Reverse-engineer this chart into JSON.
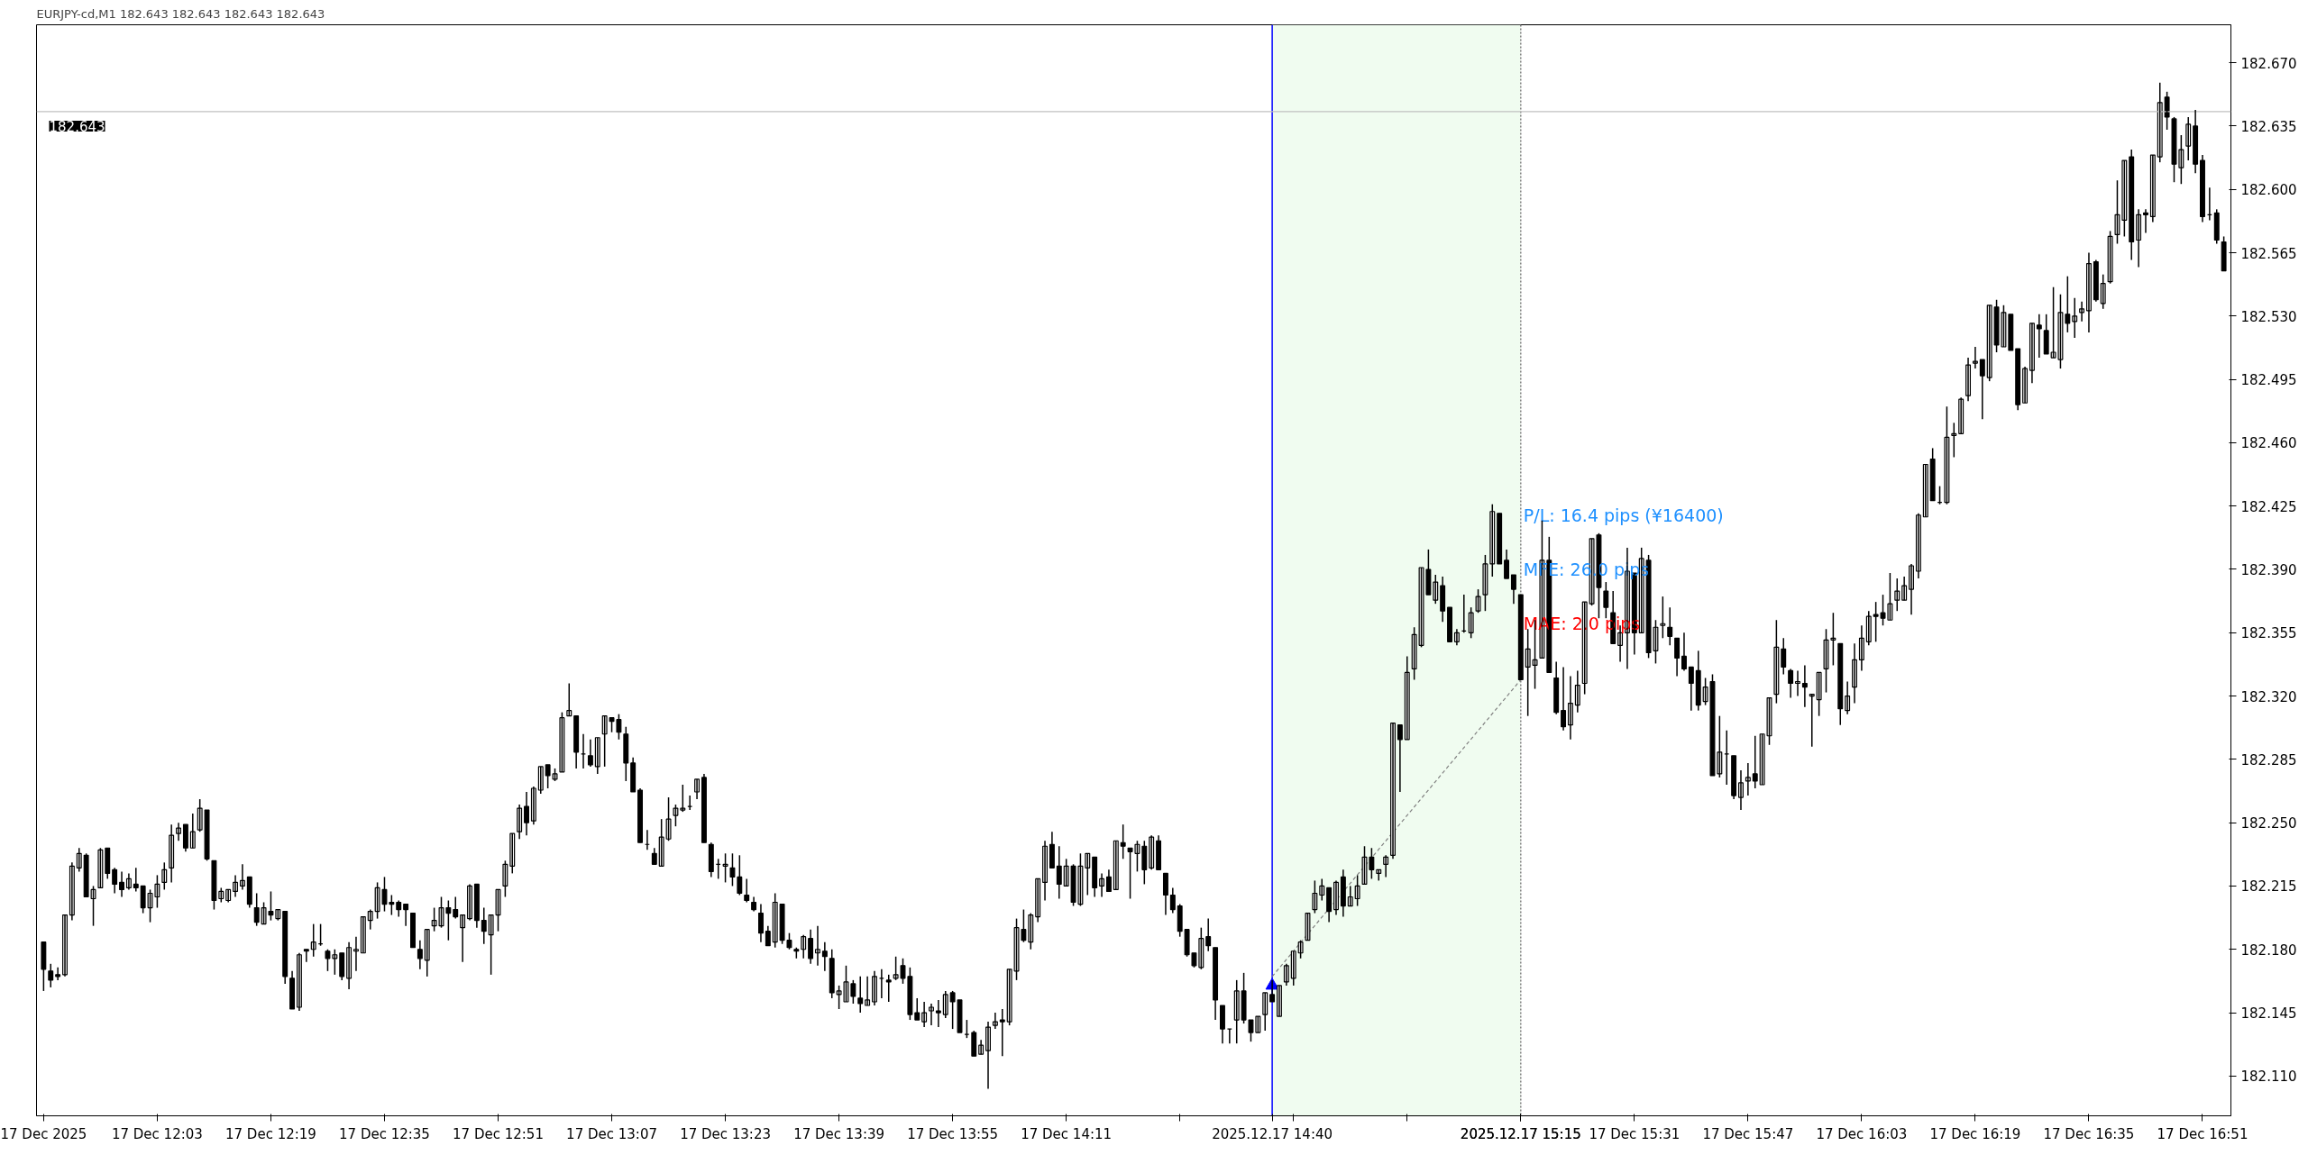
{
  "chart_data": {
    "type": "candlestick",
    "title": "EURJPY-cd,M1  182.643 182.643 182.643 182.643",
    "x": [
      "2025-12-17T11:47",
      "2025-12-17T11:48",
      "2025-12-17T11:49",
      "2025-12-17T11:50",
      "2025-12-17T11:51",
      "2025-12-17T11:52",
      "2025-12-17T11:53",
      "2025-12-17T11:54",
      "2025-12-17T11:55",
      "2025-12-17T11:56",
      "2025-12-17T11:57",
      "2025-12-17T11:58",
      "2025-12-17T11:59",
      "2025-12-17T12:00",
      "2025-12-17T12:01",
      "2025-12-17T12:02",
      "2025-12-17T12:03",
      "2025-12-17T12:04",
      "2025-12-17T12:05",
      "2025-12-17T12:06",
      "2025-12-17T12:07",
      "2025-12-17T12:08",
      "2025-12-17T12:09",
      "2025-12-17T12:10",
      "2025-12-17T12:11",
      "2025-12-17T12:12",
      "2025-12-17T12:13",
      "2025-12-17T12:14",
      "2025-12-17T12:15",
      "2025-12-17T12:16",
      "2025-12-17T12:17",
      "2025-12-17T12:18",
      "2025-12-17T12:19",
      "2025-12-17T12:20",
      "2025-12-17T12:21",
      "2025-12-17T12:22",
      "2025-12-17T12:23",
      "2025-12-17T12:24",
      "2025-12-17T12:25",
      "2025-12-17T12:26",
      "2025-12-17T12:27",
      "2025-12-17T12:28",
      "2025-12-17T12:29",
      "2025-12-17T12:30",
      "2025-12-17T12:31",
      "2025-12-17T12:32",
      "2025-12-17T12:33",
      "2025-12-17T12:34",
      "2025-12-17T12:35",
      "2025-12-17T12:36",
      "2025-12-17T12:37",
      "2025-12-17T12:38",
      "2025-12-17T12:39",
      "2025-12-17T12:40",
      "2025-12-17T12:41",
      "2025-12-17T12:42",
      "2025-12-17T12:43",
      "2025-12-17T12:44",
      "2025-12-17T12:45",
      "2025-12-17T12:46",
      "2025-12-17T12:47",
      "2025-12-17T12:48",
      "2025-12-17T12:49",
      "2025-12-17T12:50",
      "2025-12-17T12:51",
      "2025-12-17T12:52",
      "2025-12-17T12:53",
      "2025-12-17T12:54",
      "2025-12-17T12:55",
      "2025-12-17T12:56",
      "2025-12-17T12:57",
      "2025-12-17T12:58",
      "2025-12-17T12:59",
      "2025-12-17T13:00",
      "2025-12-17T13:01",
      "2025-12-17T13:02",
      "2025-12-17T13:03",
      "2025-12-17T13:04",
      "2025-12-17T13:05",
      "2025-12-17T13:06",
      "2025-12-17T13:07",
      "2025-12-17T13:08",
      "2025-12-17T13:09",
      "2025-12-17T13:10",
      "2025-12-17T13:11",
      "2025-12-17T13:12",
      "2025-12-17T13:13",
      "2025-12-17T13:14",
      "2025-12-17T13:15",
      "2025-12-17T13:16",
      "2025-12-17T13:17",
      "2025-12-17T13:18",
      "2025-12-17T13:19",
      "2025-12-17T13:20",
      "2025-12-17T13:21",
      "2025-12-17T13:22",
      "2025-12-17T13:23",
      "2025-12-17T13:24",
      "2025-12-17T13:25",
      "2025-12-17T13:26",
      "2025-12-17T13:27",
      "2025-12-17T13:28",
      "2025-12-17T13:29",
      "2025-12-17T13:30",
      "2025-12-17T13:31",
      "2025-12-17T13:32",
      "2025-12-17T13:33",
      "2025-12-17T13:34",
      "2025-12-17T13:35",
      "2025-12-17T13:36",
      "2025-12-17T13:37",
      "2025-12-17T13:38",
      "2025-12-17T13:39",
      "2025-12-17T13:40",
      "2025-12-17T13:41",
      "2025-12-17T13:42",
      "2025-12-17T13:43",
      "2025-12-17T13:44",
      "2025-12-17T13:45",
      "2025-12-17T13:46",
      "2025-12-17T13:47",
      "2025-12-17T13:48",
      "2025-12-17T13:49",
      "2025-12-17T13:50",
      "2025-12-17T13:51",
      "2025-12-17T13:52",
      "2025-12-17T13:53",
      "2025-12-17T13:54",
      "2025-12-17T13:55",
      "2025-12-17T13:56",
      "2025-12-17T13:57",
      "2025-12-17T13:58",
      "2025-12-17T13:59",
      "2025-12-17T14:00",
      "2025-12-17T14:01",
      "2025-12-17T14:02",
      "2025-12-17T14:03",
      "2025-12-17T14:04",
      "2025-12-17T14:05",
      "2025-12-17T14:06",
      "2025-12-17T14:07",
      "2025-12-17T14:08",
      "2025-12-17T14:09",
      "2025-12-17T14:10",
      "2025-12-17T14:11",
      "2025-12-17T14:12",
      "2025-12-17T14:13",
      "2025-12-17T14:14",
      "2025-12-17T14:15",
      "2025-12-17T14:16",
      "2025-12-17T14:17",
      "2025-12-17T14:18",
      "2025-12-17T14:19",
      "2025-12-17T14:20",
      "2025-12-17T14:21",
      "2025-12-17T14:22",
      "2025-12-17T14:23",
      "2025-12-17T14:24",
      "2025-12-17T14:25",
      "2025-12-17T14:26",
      "2025-12-17T14:27",
      "2025-12-17T14:28",
      "2025-12-17T14:29",
      "2025-12-17T14:30",
      "2025-12-17T14:31",
      "2025-12-17T14:32",
      "2025-12-17T14:33",
      "2025-12-17T14:34",
      "2025-12-17T14:35",
      "2025-12-17T14:36",
      "2025-12-17T14:37",
      "2025-12-17T14:38",
      "2025-12-17T14:39",
      "2025-12-17T14:40",
      "2025-12-17T14:41",
      "2025-12-17T14:42",
      "2025-12-17T14:43",
      "2025-12-17T14:44",
      "2025-12-17T14:45",
      "2025-12-17T14:46",
      "2025-12-17T14:47",
      "2025-12-17T14:48",
      "2025-12-17T14:49",
      "2025-12-17T14:50",
      "2025-12-17T14:51",
      "2025-12-17T14:52",
      "2025-12-17T14:53",
      "2025-12-17T14:54",
      "2025-12-17T14:55",
      "2025-12-17T14:56",
      "2025-12-17T14:57",
      "2025-12-17T14:58",
      "2025-12-17T14:59",
      "2025-12-17T15:00",
      "2025-12-17T15:01",
      "2025-12-17T15:02",
      "2025-12-17T15:03",
      "2025-12-17T15:04",
      "2025-12-17T15:05",
      "2025-12-17T15:06",
      "2025-12-17T15:07",
      "2025-12-17T15:08",
      "2025-12-17T15:09",
      "2025-12-17T15:10",
      "2025-12-17T15:11",
      "2025-12-17T15:12",
      "2025-12-17T15:13",
      "2025-12-17T15:14",
      "2025-12-17T15:15",
      "2025-12-17T15:16",
      "2025-12-17T15:17",
      "2025-12-17T15:18",
      "2025-12-17T15:19",
      "2025-12-17T15:20",
      "2025-12-17T15:21",
      "2025-12-17T15:22",
      "2025-12-17T15:23",
      "2025-12-17T15:24",
      "2025-12-17T15:25",
      "2025-12-17T15:26",
      "2025-12-17T15:27",
      "2025-12-17T15:28",
      "2025-12-17T15:29",
      "2025-12-17T15:30",
      "2025-12-17T15:31",
      "2025-12-17T15:32",
      "2025-12-17T15:33",
      "2025-12-17T15:34",
      "2025-12-17T15:35",
      "2025-12-17T15:36",
      "2025-12-17T15:37",
      "2025-12-17T15:38",
      "2025-12-17T15:39",
      "2025-12-17T15:40",
      "2025-12-17T15:41",
      "2025-12-17T15:42",
      "2025-12-17T15:43",
      "2025-12-17T15:44",
      "2025-12-17T15:45",
      "2025-12-17T15:46",
      "2025-12-17T15:47",
      "2025-12-17T15:48",
      "2025-12-17T15:49",
      "2025-12-17T15:50",
      "2025-12-17T15:51",
      "2025-12-17T15:52",
      "2025-12-17T15:53",
      "2025-12-17T15:54",
      "2025-12-17T15:55",
      "2025-12-17T15:56",
      "2025-12-17T15:57",
      "2025-12-17T15:58",
      "2025-12-17T15:59",
      "2025-12-17T16:00",
      "2025-12-17T16:01",
      "2025-12-17T16:02",
      "2025-12-17T16:03",
      "2025-12-17T16:04",
      "2025-12-17T16:05",
      "2025-12-17T16:06",
      "2025-12-17T16:07",
      "2025-12-17T16:08",
      "2025-12-17T16:09",
      "2025-12-17T16:10",
      "2025-12-17T16:11",
      "2025-12-17T16:12",
      "2025-12-17T16:13",
      "2025-12-17T16:14",
      "2025-12-17T16:15",
      "2025-12-17T16:16",
      "2025-12-17T16:17",
      "2025-12-17T16:18",
      "2025-12-17T16:19",
      "2025-12-17T16:20",
      "2025-12-17T16:21",
      "2025-12-17T16:22",
      "2025-12-17T16:23",
      "2025-12-17T16:24",
      "2025-12-17T16:25",
      "2025-12-17T16:26",
      "2025-12-17T16:27",
      "2025-12-17T16:28",
      "2025-12-17T16:29",
      "2025-12-17T16:30",
      "2025-12-17T16:31",
      "2025-12-17T16:32",
      "2025-12-17T16:33",
      "2025-12-17T16:34",
      "2025-12-17T16:35",
      "2025-12-17T16:36",
      "2025-12-17T16:37",
      "2025-12-17T16:38",
      "2025-12-17T16:39",
      "2025-12-17T16:40",
      "2025-12-17T16:41",
      "2025-12-17T16:42",
      "2025-12-17T16:43",
      "2025-12-17T16:44",
      "2025-12-17T16:45",
      "2025-12-17T16:46",
      "2025-12-17T16:47",
      "2025-12-17T16:48",
      "2025-12-17T16:49",
      "2025-12-17T16:50",
      "2025-12-17T16:51",
      "2025-12-17T16:52",
      "2025-12-17T16:53",
      "2025-12-17T16:54"
    ],
    "ohlc": [
      [
        182.184,
        182.184,
        182.157,
        182.169
      ],
      [
        182.168,
        182.172,
        182.159,
        182.163
      ],
      [
        182.166,
        182.17,
        182.163,
        182.165
      ],
      [
        182.166,
        182.199,
        182.165,
        182.199
      ],
      [
        182.199,
        182.228,
        182.196,
        182.226
      ],
      [
        182.225,
        182.236,
        182.223,
        182.233
      ],
      [
        182.232,
        182.233,
        182.209,
        182.209
      ],
      [
        182.208,
        182.215,
        182.193,
        182.213
      ],
      [
        182.214,
        182.236,
        182.214,
        182.235
      ],
      [
        182.236,
        182.236,
        182.219,
        182.222
      ],
      [
        182.224,
        182.225,
        182.211,
        182.216
      ],
      [
        182.217,
        182.223,
        182.209,
        182.213
      ],
      [
        182.214,
        182.222,
        182.213,
        182.219
      ],
      [
        182.216,
        182.225,
        182.212,
        182.214
      ],
      [
        182.215,
        182.215,
        182.2,
        182.203
      ],
      [
        182.203,
        182.213,
        182.195,
        182.211
      ],
      [
        182.209,
        182.221,
        182.203,
        182.216
      ],
      [
        182.217,
        182.228,
        182.213,
        182.224
      ],
      [
        182.225,
        182.249,
        182.217,
        182.243
      ],
      [
        182.244,
        182.25,
        182.24,
        182.247
      ],
      [
        182.249,
        182.249,
        182.234,
        182.236
      ],
      [
        182.236,
        182.255,
        182.236,
        182.245
      ],
      [
        182.246,
        182.263,
        182.245,
        182.258
      ],
      [
        182.257,
        182.257,
        182.229,
        182.23
      ],
      [
        182.229,
        182.229,
        182.202,
        182.207
      ],
      [
        182.208,
        182.214,
        182.206,
        182.212
      ],
      [
        182.207,
        182.213,
        182.206,
        182.213
      ],
      [
        182.212,
        182.221,
        182.209,
        182.217
      ],
      [
        182.215,
        182.227,
        182.213,
        182.218
      ],
      [
        182.22,
        182.22,
        182.203,
        182.205
      ],
      [
        182.203,
        182.211,
        182.193,
        182.195
      ],
      [
        182.194,
        182.206,
        182.194,
        182.203
      ],
      [
        182.201,
        182.212,
        182.196,
        182.199
      ],
      [
        182.197,
        182.202,
        182.196,
        182.202
      ],
      [
        182.201,
        182.201,
        182.161,
        182.165
      ],
      [
        182.164,
        182.168,
        182.147,
        182.147
      ],
      [
        182.148,
        182.178,
        182.146,
        182.177
      ],
      [
        182.18,
        182.18,
        182.173,
        182.179
      ],
      [
        182.18,
        182.194,
        182.176,
        182.184
      ],
      [
        182.183,
        182.194,
        182.182,
        182.183
      ],
      [
        182.179,
        182.18,
        182.168,
        182.175
      ],
      [
        182.175,
        182.18,
        182.166,
        182.177
      ],
      [
        182.178,
        182.178,
        182.163,
        182.165
      ],
      [
        182.164,
        182.184,
        182.158,
        182.181
      ],
      [
        182.179,
        182.187,
        182.168,
        182.18
      ],
      [
        182.178,
        182.198,
        182.178,
        182.198
      ],
      [
        182.196,
        182.202,
        182.191,
        182.201
      ],
      [
        182.201,
        182.217,
        182.197,
        182.214
      ],
      [
        182.213,
        182.22,
        182.201,
        182.205
      ],
      [
        182.206,
        182.21,
        182.199,
        182.205
      ],
      [
        182.206,
        182.207,
        182.198,
        182.202
      ],
      [
        182.205,
        182.205,
        182.193,
        182.202
      ],
      [
        182.2,
        182.2,
        182.181,
        182.181
      ],
      [
        182.18,
        182.185,
        182.169,
        182.175
      ],
      [
        182.174,
        182.191,
        182.165,
        182.191
      ],
      [
        182.193,
        182.203,
        182.19,
        182.196
      ],
      [
        182.193,
        182.209,
        182.192,
        182.203
      ],
      [
        182.203,
        182.207,
        182.185,
        182.2
      ],
      [
        182.202,
        182.209,
        182.197,
        182.198
      ],
      [
        182.192,
        182.199,
        182.173,
        182.199
      ],
      [
        182.197,
        182.216,
        182.196,
        182.215
      ],
      [
        182.216,
        182.216,
        182.192,
        182.196
      ],
      [
        182.196,
        182.203,
        182.183,
        182.19
      ],
      [
        182.188,
        182.199,
        182.166,
        182.199
      ],
      [
        182.199,
        182.213,
        182.19,
        182.213
      ],
      [
        182.215,
        182.229,
        182.209,
        182.227
      ],
      [
        182.226,
        182.244,
        182.222,
        182.244
      ],
      [
        182.245,
        182.26,
        182.241,
        182.258
      ],
      [
        182.259,
        182.267,
        182.243,
        182.25
      ],
      [
        182.251,
        182.27,
        182.249,
        182.269
      ],
      [
        182.268,
        182.281,
        182.266,
        182.281
      ],
      [
        182.282,
        182.282,
        182.269,
        182.276
      ],
      [
        182.274,
        182.28,
        182.273,
        182.277
      ],
      [
        182.278,
        182.311,
        182.278,
        182.308
      ],
      [
        182.309,
        182.327,
        182.309,
        182.312
      ],
      [
        182.309,
        182.309,
        182.28,
        182.289
      ],
      [
        182.288,
        182.299,
        182.28,
        182.288
      ],
      [
        182.287,
        182.296,
        182.281,
        182.282
      ],
      [
        182.281,
        182.297,
        182.277,
        182.297
      ],
      [
        182.299,
        182.309,
        182.281,
        182.309
      ],
      [
        182.308,
        182.308,
        182.3,
        182.306
      ],
      [
        182.307,
        182.31,
        182.296,
        182.3
      ],
      [
        182.299,
        182.303,
        182.273,
        182.283
      ],
      [
        182.283,
        182.286,
        182.267,
        182.267
      ],
      [
        182.268,
        182.269,
        182.239,
        182.239
      ],
      [
        182.238,
        182.246,
        182.235,
        182.238
      ],
      [
        182.233,
        182.236,
        182.227,
        182.227
      ],
      [
        182.226,
        182.252,
        182.226,
        182.242
      ],
      [
        182.241,
        182.264,
        182.24,
        182.252
      ],
      [
        182.254,
        182.26,
        182.248,
        182.258
      ],
      [
        182.257,
        182.271,
        182.256,
        182.258
      ],
      [
        182.259,
        182.265,
        182.257,
        182.259
      ],
      [
        182.267,
        182.274,
        182.263,
        182.274
      ],
      [
        182.275,
        182.277,
        182.239,
        182.239
      ],
      [
        182.238,
        182.239,
        182.22,
        182.223
      ],
      [
        182.227,
        182.23,
        182.219,
        182.227
      ],
      [
        182.226,
        182.233,
        182.217,
        182.227
      ],
      [
        182.225,
        182.233,
        182.215,
        182.22
      ],
      [
        182.22,
        182.232,
        182.21,
        182.211
      ],
      [
        182.21,
        182.219,
        182.206,
        182.207
      ],
      [
        182.206,
        182.209,
        182.201,
        182.202
      ],
      [
        182.2,
        182.205,
        182.184,
        182.189
      ],
      [
        182.19,
        182.193,
        182.182,
        182.182
      ],
      [
        182.184,
        182.211,
        182.181,
        182.206
      ],
      [
        182.205,
        182.205,
        182.183,
        182.185
      ],
      [
        182.185,
        182.189,
        182.18,
        182.181
      ],
      [
        182.18,
        182.181,
        182.175,
        182.179
      ],
      [
        182.18,
        182.188,
        182.175,
        182.187
      ],
      [
        182.186,
        182.191,
        182.172,
        182.175
      ],
      [
        182.178,
        182.193,
        182.171,
        182.18
      ],
      [
        182.179,
        182.184,
        182.168,
        182.176
      ],
      [
        182.175,
        182.18,
        182.153,
        182.156
      ],
      [
        182.155,
        182.16,
        182.147,
        182.157
      ],
      [
        182.151,
        182.171,
        182.151,
        182.162
      ],
      [
        182.161,
        182.163,
        182.15,
        182.154
      ],
      [
        182.153,
        182.165,
        182.145,
        182.15
      ],
      [
        182.149,
        182.165,
        182.149,
        182.152
      ],
      [
        182.151,
        182.168,
        182.149,
        182.165
      ],
      [
        182.164,
        182.169,
        182.153,
        182.164
      ],
      [
        182.163,
        182.166,
        182.151,
        182.162
      ],
      [
        182.164,
        182.176,
        182.163,
        182.166
      ],
      [
        182.171,
        182.175,
        182.161,
        182.164
      ],
      [
        182.165,
        182.17,
        182.141,
        182.144
      ],
      [
        182.145,
        182.153,
        182.141,
        182.141
      ],
      [
        182.14,
        182.151,
        182.137,
        182.145
      ],
      [
        182.146,
        182.15,
        182.138,
        182.148
      ],
      [
        182.146,
        182.152,
        182.137,
        182.145
      ],
      [
        182.144,
        182.157,
        182.142,
        182.155
      ],
      [
        182.156,
        182.157,
        182.136,
        182.151
      ],
      [
        182.152,
        182.152,
        182.134,
        182.134
      ],
      [
        182.133,
        182.141,
        182.131,
        182.133
      ],
      [
        182.134,
        182.135,
        182.121,
        182.121
      ],
      [
        182.122,
        182.13,
        182.122,
        182.127
      ],
      [
        182.124,
        182.14,
        182.103,
        182.137
      ],
      [
        182.138,
        182.145,
        182.136,
        182.14
      ],
      [
        182.141,
        182.147,
        182.121,
        182.14
      ],
      [
        182.14,
        182.169,
        182.138,
        182.169
      ],
      [
        182.168,
        182.197,
        182.163,
        182.192
      ],
      [
        182.191,
        182.202,
        182.184,
        182.185
      ],
      [
        182.184,
        182.2,
        182.18,
        182.199
      ],
      [
        182.198,
        182.219,
        182.195,
        182.219
      ],
      [
        182.217,
        182.24,
        182.207,
        182.237
      ],
      [
        182.238,
        182.245,
        182.225,
        182.225
      ],
      [
        182.226,
        182.237,
        182.208,
        182.216
      ],
      [
        182.215,
        182.23,
        182.215,
        182.226
      ],
      [
        182.226,
        182.227,
        182.204,
        182.206
      ],
      [
        182.205,
        182.233,
        182.204,
        182.226
      ],
      [
        182.225,
        182.233,
        182.21,
        182.233
      ],
      [
        182.231,
        182.231,
        182.209,
        182.214
      ],
      [
        182.215,
        182.222,
        182.209,
        182.219
      ],
      [
        182.22,
        182.224,
        182.212,
        182.212
      ],
      [
        182.213,
        182.24,
        182.213,
        182.24
      ],
      [
        182.239,
        182.249,
        182.23,
        182.237
      ],
      [
        182.236,
        182.236,
        182.208,
        182.234
      ],
      [
        182.233,
        182.24,
        182.223,
        182.238
      ],
      [
        182.237,
        182.24,
        182.216,
        182.224
      ],
      [
        182.225,
        182.243,
        182.224,
        182.242
      ],
      [
        182.24,
        182.243,
        182.224,
        182.224
      ],
      [
        182.222,
        182.222,
        182.199,
        182.21
      ],
      [
        182.21,
        182.214,
        182.2,
        182.202
      ],
      [
        182.204,
        182.205,
        182.187,
        182.19
      ],
      [
        182.191,
        182.191,
        182.176,
        182.177
      ],
      [
        182.178,
        182.178,
        182.17,
        182.171
      ],
      [
        182.17,
        182.192,
        182.169,
        182.186
      ],
      [
        182.187,
        182.197,
        182.179,
        182.182
      ],
      [
        182.181,
        182.181,
        182.141,
        182.152
      ],
      [
        182.149,
        182.149,
        182.128,
        182.136
      ],
      [
        182.136,
        182.136,
        182.128,
        182.136
      ],
      [
        182.141,
        182.163,
        182.128,
        182.157
      ],
      [
        182.157,
        182.167,
        182.139,
        182.141
      ],
      [
        182.141,
        182.141,
        182.129,
        182.134
      ],
      [
        182.134,
        182.143,
        182.134,
        182.143
      ],
      [
        182.144,
        182.156,
        182.135,
        182.156
      ],
      [
        182.155,
        182.163,
        182.151,
        182.151
      ],
      [
        182.143,
        182.16,
        182.143,
        182.16
      ],
      [
        182.162,
        182.172,
        182.16,
        182.171
      ],
      [
        182.164,
        182.179,
        182.16,
        182.179
      ],
      [
        182.178,
        182.185,
        182.175,
        182.184
      ],
      [
        182.185,
        182.2,
        182.185,
        182.2
      ],
      [
        182.202,
        182.218,
        182.2,
        182.211
      ],
      [
        182.21,
        182.219,
        182.207,
        182.215
      ],
      [
        182.214,
        182.214,
        182.195,
        182.201
      ],
      [
        182.202,
        182.218,
        182.199,
        182.217
      ],
      [
        182.22,
        182.224,
        182.198,
        182.204
      ],
      [
        182.204,
        182.215,
        182.204,
        182.209
      ],
      [
        182.208,
        182.221,
        182.204,
        182.215
      ],
      [
        182.216,
        182.237,
        182.216,
        182.231
      ],
      [
        182.231,
        182.236,
        182.219,
        182.224
      ],
      [
        182.222,
        182.224,
        182.218,
        182.224
      ],
      [
        182.227,
        182.232,
        182.22,
        182.231
      ],
      [
        182.232,
        182.305,
        182.23,
        182.305
      ],
      [
        182.304,
        182.304,
        182.267,
        182.296
      ],
      [
        182.296,
        182.342,
        182.296,
        182.333
      ],
      [
        182.335,
        182.358,
        182.329,
        182.354
      ],
      [
        182.348,
        182.391,
        182.347,
        182.391
      ],
      [
        182.39,
        182.401,
        182.376,
        182.376
      ],
      [
        182.373,
        182.387,
        182.371,
        182.383
      ],
      [
        182.381,
        182.386,
        182.361,
        182.367
      ],
      [
        182.369,
        182.369,
        182.35,
        182.35
      ],
      [
        182.35,
        182.357,
        182.348,
        182.355
      ],
      [
        182.356,
        182.376,
        182.355,
        182.356
      ],
      [
        182.355,
        182.369,
        182.352,
        182.366
      ],
      [
        182.367,
        182.379,
        182.366,
        182.375
      ],
      [
        182.376,
        182.398,
        182.367,
        182.393
      ],
      [
        182.393,
        182.426,
        182.386,
        182.422
      ],
      [
        182.421,
        182.421,
        182.393,
        182.393
      ],
      [
        182.395,
        182.401,
        182.385,
        182.385
      ],
      [
        182.387,
        182.387,
        182.371,
        182.379
      ],
      [
        182.376,
        182.376,
        182.329,
        182.329
      ],
      [
        182.336,
        182.357,
        182.309,
        182.346
      ],
      [
        182.337,
        182.362,
        182.324,
        182.34
      ],
      [
        182.341,
        182.417,
        182.341,
        182.395
      ],
      [
        182.395,
        182.408,
        182.333,
        182.333
      ],
      [
        182.33,
        182.339,
        182.31,
        182.311
      ],
      [
        182.312,
        182.336,
        182.301,
        182.303
      ],
      [
        182.304,
        182.331,
        182.296,
        182.316
      ],
      [
        182.315,
        182.334,
        182.311,
        182.326
      ],
      [
        182.327,
        182.372,
        182.321,
        182.372
      ],
      [
        182.371,
        182.407,
        182.37,
        182.407
      ],
      [
        182.409,
        182.41,
        182.363,
        182.38
      ],
      [
        182.378,
        182.383,
        182.363,
        182.369
      ],
      [
        182.366,
        182.378,
        182.349,
        182.349
      ],
      [
        182.348,
        182.359,
        182.339,
        182.355
      ],
      [
        182.355,
        182.402,
        182.335,
        182.389
      ],
      [
        182.388,
        182.388,
        182.343,
        182.355
      ],
      [
        182.355,
        182.402,
        182.355,
        182.396
      ],
      [
        182.395,
        182.398,
        182.341,
        182.344
      ],
      [
        182.345,
        182.362,
        182.338,
        182.358
      ],
      [
        182.359,
        182.375,
        182.352,
        182.36
      ],
      [
        182.358,
        182.369,
        182.348,
        182.353
      ],
      [
        182.352,
        182.352,
        182.331,
        182.341
      ],
      [
        182.342,
        182.355,
        182.334,
        182.335
      ],
      [
        182.336,
        182.336,
        182.312,
        182.327
      ],
      [
        182.334,
        182.345,
        182.312,
        182.315
      ],
      [
        182.317,
        182.33,
        182.315,
        182.325
      ],
      [
        182.328,
        182.332,
        182.276,
        182.276
      ],
      [
        182.277,
        182.309,
        182.275,
        182.289
      ],
      [
        182.288,
        182.301,
        182.271,
        182.288
      ],
      [
        182.287,
        182.287,
        182.263,
        182.265
      ],
      [
        182.264,
        182.279,
        182.257,
        182.272
      ],
      [
        182.273,
        182.283,
        182.265,
        182.275
      ],
      [
        182.277,
        182.298,
        182.269,
        182.273
      ],
      [
        182.271,
        182.299,
        182.271,
        182.299
      ],
      [
        182.298,
        182.319,
        182.293,
        182.319
      ],
      [
        182.321,
        182.362,
        182.316,
        182.347
      ],
      [
        182.346,
        182.352,
        182.332,
        182.336
      ],
      [
        182.334,
        182.335,
        182.319,
        182.327
      ],
      [
        182.327,
        182.334,
        182.32,
        182.328
      ],
      [
        182.327,
        182.337,
        182.314,
        182.325
      ],
      [
        182.32,
        182.321,
        182.292,
        182.321
      ],
      [
        182.318,
        182.333,
        182.309,
        182.333
      ],
      [
        182.335,
        182.357,
        182.322,
        182.351
      ],
      [
        182.351,
        182.366,
        182.337,
        182.352
      ],
      [
        182.349,
        182.349,
        182.304,
        182.313
      ],
      [
        182.312,
        182.328,
        182.31,
        182.32
      ],
      [
        182.325,
        182.349,
        182.316,
        182.34
      ],
      [
        182.34,
        182.359,
        182.334,
        182.352
      ],
      [
        182.35,
        182.367,
        182.348,
        182.364
      ],
      [
        182.365,
        182.372,
        182.35,
        182.364
      ],
      [
        182.366,
        182.376,
        182.359,
        182.363
      ],
      [
        182.362,
        182.388,
        182.362,
        182.371
      ],
      [
        182.373,
        182.385,
        182.367,
        182.378
      ],
      [
        182.373,
        182.386,
        182.373,
        182.381
      ],
      [
        182.379,
        182.393,
        182.365,
        182.392
      ],
      [
        182.389,
        182.421,
        182.385,
        182.42
      ],
      [
        182.419,
        182.448,
        182.419,
        182.448
      ],
      [
        182.451,
        182.457,
        182.428,
        182.428
      ],
      [
        182.427,
        182.436,
        182.426,
        182.427
      ],
      [
        182.427,
        182.48,
        182.426,
        182.463
      ],
      [
        182.464,
        182.471,
        182.452,
        182.465
      ],
      [
        182.465,
        182.485,
        182.465,
        182.484
      ],
      [
        182.486,
        182.507,
        182.483,
        182.503
      ],
      [
        182.504,
        182.513,
        182.501,
        182.505
      ],
      [
        182.506,
        182.506,
        182.473,
        182.497
      ],
      [
        182.496,
        182.536,
        182.494,
        182.536
      ],
      [
        182.535,
        182.539,
        182.51,
        182.514
      ],
      [
        182.513,
        182.536,
        182.513,
        182.532
      ],
      [
        182.531,
        182.531,
        182.511,
        182.511
      ],
      [
        182.512,
        182.512,
        182.478,
        182.481
      ],
      [
        182.482,
        182.502,
        182.482,
        182.501
      ],
      [
        182.5,
        182.526,
        182.493,
        182.526
      ],
      [
        182.525,
        182.531,
        182.507,
        182.523
      ],
      [
        182.522,
        182.531,
        182.509,
        182.509
      ],
      [
        182.507,
        182.546,
        182.507,
        182.51
      ],
      [
        182.506,
        182.542,
        182.501,
        182.532
      ],
      [
        182.531,
        182.552,
        182.521,
        182.526
      ],
      [
        182.527,
        182.54,
        182.518,
        182.53
      ],
      [
        182.532,
        182.538,
        182.527,
        182.534
      ],
      [
        182.533,
        182.565,
        182.521,
        182.559
      ],
      [
        182.56,
        182.561,
        182.538,
        182.539
      ],
      [
        182.537,
        182.553,
        182.534,
        182.548
      ],
      [
        182.549,
        182.577,
        182.548,
        182.574
      ],
      [
        182.575,
        182.605,
        182.57,
        182.586
      ],
      [
        182.583,
        182.616,
        182.574,
        182.616
      ],
      [
        182.618,
        182.622,
        182.561,
        182.571
      ],
      [
        182.572,
        182.589,
        182.557,
        182.586
      ],
      [
        182.587,
        182.589,
        182.576,
        182.586
      ],
      [
        182.585,
        182.619,
        182.582,
        182.619
      ],
      [
        182.618,
        182.659,
        182.615,
        182.648
      ],
      [
        182.651,
        182.654,
        182.633,
        182.64
      ],
      [
        182.639,
        182.64,
        182.604,
        182.614
      ],
      [
        182.612,
        182.63,
        182.603,
        182.622
      ],
      [
        182.624,
        182.64,
        182.616,
        182.636
      ],
      [
        182.635,
        182.644,
        182.609,
        182.614
      ],
      [
        182.616,
        182.619,
        182.582,
        182.585
      ],
      [
        182.586,
        182.601,
        182.583,
        182.586
      ],
      [
        182.587,
        182.589,
        182.57,
        182.572
      ],
      [
        182.571,
        182.574,
        182.555,
        182.555
      ]
    ],
    "xlim": [
      "2025-12-17T11:46",
      "2025-12-17T16:55"
    ],
    "xticks": [
      {
        "value": "2025-12-17T11:47",
        "label": "17 Dec 2025"
      },
      {
        "value": "2025-12-17T12:03",
        "label": "17 Dec 12:03"
      },
      {
        "value": "2025-12-17T12:19",
        "label": "17 Dec 12:19"
      },
      {
        "value": "2025-12-17T12:35",
        "label": "17 Dec 12:35"
      },
      {
        "value": "2025-12-17T12:51",
        "label": "17 Dec 12:51"
      },
      {
        "value": "2025-12-17T13:07",
        "label": "17 Dec 13:07"
      },
      {
        "value": "2025-12-17T13:23",
        "label": "17 Dec 13:23"
      },
      {
        "value": "2025-12-17T13:39",
        "label": "17 Dec 13:39"
      },
      {
        "value": "2025-12-17T13:55",
        "label": "17 Dec 13:55"
      },
      {
        "value": "2025-12-17T14:11",
        "label": "17 Dec 14:11"
      },
      {
        "value": "2025-12-17T14:27",
        "label": null
      },
      {
        "value": "2025-12-17T14:43",
        "label": null
      },
      {
        "value": "2025-12-17T14:59",
        "label": null
      },
      {
        "value": "2025-12-17T15:15",
        "label": null
      },
      {
        "value": "2025-12-17T15:31",
        "label": "17 Dec 15:31"
      },
      {
        "value": "2025-12-17T15:47",
        "label": "17 Dec 15:47"
      },
      {
        "value": "2025-12-17T16:03",
        "label": "17 Dec 16:03"
      },
      {
        "value": "2025-12-17T16:19",
        "label": "17 Dec 16:19"
      },
      {
        "value": "2025-12-17T16:35",
        "label": "17 Dec 16:35"
      },
      {
        "value": "2025-12-17T16:51",
        "label": "17 Dec 16:51"
      }
    ],
    "ylim": [
      182.088,
      182.691
    ],
    "yticks": [
      {
        "value": 182.11,
        "label": "182.110"
      },
      {
        "value": 182.145,
        "label": "182.145"
      },
      {
        "value": 182.18,
        "label": "182.180"
      },
      {
        "value": 182.215,
        "label": "182.215"
      },
      {
        "value": 182.25,
        "label": "182.250"
      },
      {
        "value": 182.285,
        "label": "182.285"
      },
      {
        "value": 182.32,
        "label": "182.320"
      },
      {
        "value": 182.355,
        "label": "182.355"
      },
      {
        "value": 182.39,
        "label": "182.390"
      },
      {
        "value": 182.425,
        "label": "182.425"
      },
      {
        "value": 182.46,
        "label": "182.460"
      },
      {
        "value": 182.495,
        "label": "182.495"
      },
      {
        "value": 182.53,
        "label": "182.530"
      },
      {
        "value": 182.565,
        "label": "182.565"
      },
      {
        "value": 182.6,
        "label": "182.600"
      },
      {
        "value": 182.635,
        "label": "182.635"
      },
      {
        "value": 182.67,
        "label": "182.670"
      }
    ],
    "bands": [
      {
        "axis": "x",
        "from": "2025-12-17T14:40",
        "to": "2025-12-17T15:15",
        "color": "#f0fcf0"
      }
    ],
    "ref_lines": [
      {
        "axis": "x",
        "value": "2025-12-17T14:40",
        "label": "2025.12.17 14:40",
        "color": "#0000ff",
        "line_style": "solid"
      },
      {
        "axis": "x",
        "value": "2025-12-17T15:15",
        "label": "2025.12.17 15:15",
        "color": "#808080",
        "line_style": "dotted"
      },
      {
        "axis": "y",
        "value": 182.643,
        "label": "182.643",
        "color": "#c0c0c0",
        "line_style": "solid"
      }
    ],
    "series": [
      {
        "type": "line",
        "color": "#808080",
        "line_style": "dashed",
        "x": [
          "2025-12-17T14:40",
          "2025-12-17T15:15"
        ],
        "values": [
          182.165,
          182.329
        ]
      },
      {
        "type": "scatter",
        "color": "#0000ff",
        "marker": "triangle",
        "x": [
          "2025-12-17T14:40"
        ],
        "values": [
          182.16
        ]
      }
    ],
    "annotations": [
      {
        "text": "P/L: 16.4 pips (¥16400)",
        "x": "2025-12-17T15:15",
        "y": 182.42
      },
      {
        "text": "MFE: 26.0 pips",
        "x": "2025-12-17T15:15",
        "y": 182.39
      },
      {
        "text": "MAE: 2.0 pips",
        "x": "2025-12-17T15:15",
        "y": 182.36
      }
    ]
  }
}
